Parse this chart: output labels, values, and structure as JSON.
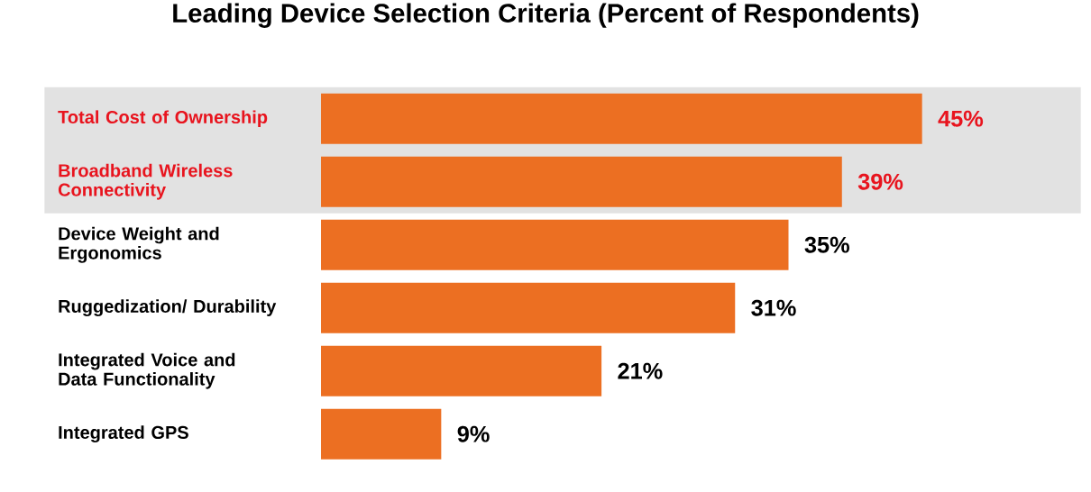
{
  "chart_data": {
    "type": "bar",
    "orientation": "horizontal",
    "title": "Leading Device Selection Criteria (Percent of Respondents)",
    "categories": [
      "Total Cost of Ownership",
      "Broadband Wireless Connectivity",
      "Device Weight and Ergonomics",
      "Ruggedization/ Durability",
      "Integrated Voice and Data Functionality",
      "Integrated GPS"
    ],
    "values": [
      45,
      39,
      35,
      31,
      21,
      9
    ],
    "value_labels": [
      "45%",
      "39%",
      "35%",
      "31%",
      "21%",
      "9%"
    ],
    "color": "#ec6f22",
    "bands": [
      {
        "axis": "y",
        "from": "Total Cost of Ownership",
        "to": "Broadband Wireless Connectivity",
        "color": "#e2e2e2"
      }
    ]
  }
}
